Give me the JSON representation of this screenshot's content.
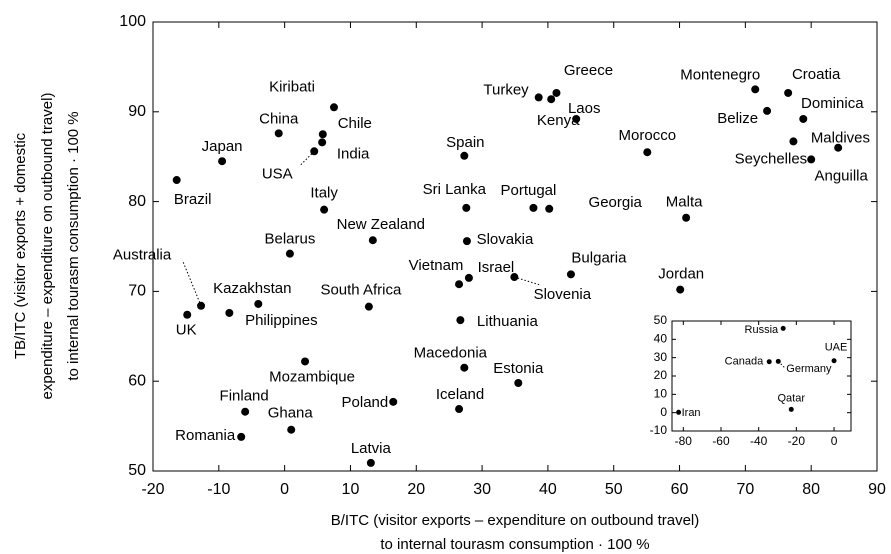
{
  "chart_data": [
    {
      "type": "scatter",
      "x_label": [
        "B/ITC (visitor exports – expenditure on outbound travel)",
        "to internal tourasm consumption · 100 %"
      ],
      "y_label": [
        "TB/ITC (visitor exports + domestic",
        "expenditure – expenditure on outbound travel)",
        "to internal tourasm consumption · 100 %"
      ],
      "labels": [
        "Brazil",
        "Japan",
        "China",
        "Kiribati",
        "Chile",
        "India",
        "USA",
        "Spain",
        "Turkey",
        "Greece",
        "Kenya",
        "Laos",
        "Morocco",
        "Montenegro",
        "Croatia",
        "Belize",
        "Dominica",
        "Maldives",
        "Seychelles",
        "Anguilla",
        "Sri Lanka",
        "Portugal",
        "Georgia",
        "Malta",
        "Italy",
        "New Zealand",
        "Slovakia",
        "Belarus",
        "Vietnam",
        "Israel",
        "Slovenia",
        "Bulgaria",
        "Jordan",
        "South Africa",
        "Lithuania",
        "Australia",
        "Kazakhstan",
        "UK",
        "Philippines",
        "Mozambique",
        "Macedonia",
        "Estonia",
        "Finland",
        "Ghana",
        "Poland",
        "Iceland",
        "Romania",
        "Latvia"
      ],
      "x": [
        -16.4,
        -9.5,
        -0.9,
        7.5,
        5.8,
        5.7,
        4.5,
        27.3,
        38.6,
        41.3,
        40.5,
        44.3,
        55.1,
        71.5,
        76.5,
        73.3,
        78.8,
        77.3,
        80.0,
        84.1,
        27.6,
        37.8,
        40.2,
        61.0,
        6.0,
        13.4,
        27.7,
        0.8,
        26.5,
        28.0,
        34.9,
        43.5,
        60.1,
        12.8,
        26.7,
        -12.7,
        -4.0,
        -14.8,
        -8.4,
        3.1,
        27.3,
        35.5,
        -6.0,
        1.0,
        16.5,
        26.5,
        -6.6,
        13.1
      ],
      "values": [
        82.4,
        84.5,
        87.6,
        90.5,
        87.5,
        86.6,
        85.6,
        85.1,
        91.6,
        92.1,
        91.4,
        89.2,
        85.5,
        92.5,
        92.1,
        90.1,
        89.2,
        86.7,
        84.7,
        86.0,
        79.3,
        79.3,
        79.2,
        78.2,
        79.1,
        75.7,
        75.6,
        74.2,
        70.8,
        71.5,
        71.6,
        71.9,
        70.2,
        68.3,
        66.8,
        68.4,
        68.6,
        67.4,
        67.6,
        62.2,
        61.5,
        59.8,
        56.6,
        54.6,
        57.7,
        56.9,
        53.8,
        50.9
      ],
      "color": "#000000",
      "xlim": [
        -20,
        90
      ],
      "xticks": [
        -20,
        -10,
        0,
        10,
        20,
        30,
        40,
        50,
        60,
        70,
        80,
        90
      ],
      "ylim": [
        50,
        100
      ],
      "yticks": [
        50,
        60,
        70,
        80,
        90,
        100
      ]
    },
    {
      "type": "scatter",
      "labels": [
        "Russia",
        "Canada",
        "Germany",
        "UAE",
        "Qatar",
        "Iran"
      ],
      "x": [
        -27,
        -34.4,
        -29.6,
        0,
        -22.7,
        -82.5
      ],
      "values": [
        46,
        27.8,
        28,
        28.3,
        1.8,
        0.2
      ],
      "color": "#000000",
      "xlim": [
        -86,
        9
      ],
      "xticks": [
        -80,
        -60,
        -40,
        -20,
        0
      ],
      "ylim": [
        -10,
        50
      ],
      "yticks": [
        -10,
        0,
        10,
        20,
        30,
        40,
        50
      ]
    }
  ]
}
